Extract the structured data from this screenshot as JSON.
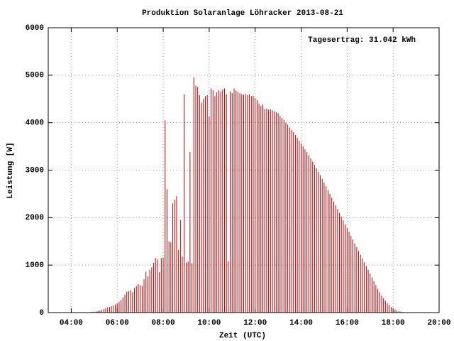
{
  "chart_data": {
    "type": "impulse",
    "title": "Produktion Solaranlage Löhracker 2013-08-21",
    "annotation": "Tagesertrag: 31.042 kWh",
    "x_label": "Zeit (UTC)",
    "y_label": "Leistung [W]",
    "color": "#cc0000",
    "grid": true,
    "xlim": [
      180,
      1200
    ],
    "xticks": [
      {
        "value": 240,
        "label": "04:00"
      },
      {
        "value": 360,
        "label": "06:00"
      },
      {
        "value": 480,
        "label": "08:00"
      },
      {
        "value": 600,
        "label": "10:00"
      },
      {
        "value": 720,
        "label": "12:00"
      },
      {
        "value": 840,
        "label": "14:00"
      },
      {
        "value": 960,
        "label": "16:00"
      },
      {
        "value": 1080,
        "label": "18:00"
      },
      {
        "value": 1200,
        "label": "20:00"
      }
    ],
    "ylim": [
      0,
      6000
    ],
    "yticks": [
      0,
      1000,
      2000,
      3000,
      4000,
      5000,
      6000
    ],
    "x": [
      285,
      290,
      295,
      300,
      305,
      310,
      315,
      320,
      325,
      330,
      335,
      340,
      345,
      350,
      355,
      360,
      365,
      370,
      375,
      380,
      385,
      390,
      395,
      400,
      405,
      410,
      415,
      420,
      425,
      430,
      435,
      440,
      445,
      450,
      455,
      460,
      465,
      470,
      475,
      480,
      485,
      490,
      495,
      500,
      505,
      510,
      515,
      520,
      525,
      530,
      535,
      540,
      545,
      550,
      555,
      560,
      565,
      570,
      575,
      580,
      585,
      590,
      595,
      600,
      605,
      610,
      615,
      620,
      625,
      630,
      635,
      640,
      645,
      650,
      655,
      660,
      665,
      670,
      675,
      680,
      685,
      690,
      695,
      700,
      705,
      710,
      715,
      720,
      725,
      730,
      735,
      740,
      745,
      750,
      755,
      760,
      765,
      770,
      775,
      780,
      785,
      790,
      795,
      800,
      805,
      810,
      815,
      820,
      825,
      830,
      835,
      840,
      845,
      850,
      855,
      860,
      865,
      870,
      875,
      880,
      885,
      890,
      895,
      900,
      905,
      910,
      915,
      920,
      925,
      930,
      935,
      940,
      945,
      950,
      955,
      960,
      965,
      970,
      975,
      980,
      985,
      990,
      995,
      1000,
      1005,
      1010,
      1015,
      1020,
      1025,
      1030,
      1035,
      1040,
      1045,
      1050,
      1055,
      1060,
      1065,
      1070,
      1075,
      1080,
      1085,
      1090,
      1095,
      1100,
      1105,
      1110,
      1115
    ],
    "values": [
      5,
      10,
      15,
      20,
      25,
      35,
      45,
      60,
      75,
      90,
      110,
      120,
      135,
      150,
      170,
      190,
      230,
      270,
      320,
      380,
      440,
      450,
      470,
      430,
      520,
      560,
      600,
      580,
      560,
      700,
      860,
      760,
      900,
      950,
      1050,
      1150,
      1120,
      850,
      1150,
      1160,
      4050,
      2600,
      1500,
      1480,
      2300,
      2380,
      2450,
      1320,
      1950,
      1180,
      4600,
      1050,
      1080,
      3380,
      1040,
      4950,
      4780,
      4750,
      4580,
      4420,
      4500,
      4560,
      4580,
      4120,
      4720,
      4680,
      4560,
      4640,
      4680,
      4660,
      4700,
      4720,
      4600,
      1080,
      4660,
      4620,
      4720,
      4680,
      4650,
      4620,
      4600,
      4590,
      4610,
      4580,
      4600,
      4560,
      4570,
      4520,
      4480,
      4400,
      4350,
      4380,
      4280,
      4300,
      4270,
      4280,
      4260,
      4240,
      4220,
      4200,
      4140,
      4100,
      4060,
      4000,
      3960,
      3900,
      3850,
      3800,
      3740,
      3680,
      3620,
      3560,
      3500,
      3440,
      3380,
      3320,
      3250,
      3180,
      3110,
      3040,
      2960,
      2890,
      2820,
      2740,
      2660,
      2580,
      2500,
      2420,
      2340,
      2260,
      2180,
      2100,
      2020,
      1940,
      1860,
      1780,
      1700,
      1620,
      1540,
      1460,
      1380,
      1300,
      1220,
      1140,
      1060,
      980,
      900,
      820,
      740,
      660,
      580,
      500,
      430,
      360,
      300,
      250,
      200,
      160,
      120,
      90,
      65,
      45,
      30,
      20,
      12,
      6,
      3
    ]
  }
}
